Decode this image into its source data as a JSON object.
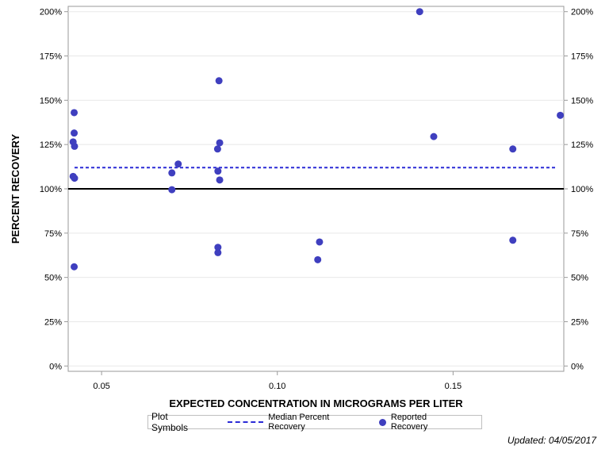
{
  "chart_data": {
    "type": "scatter",
    "xlabel": "EXPECTED CONCENTRATION IN MICROGRAMS PER LITER",
    "ylabel": "PERCENT RECOVERY",
    "xlim": [
      0.0405,
      0.1815
    ],
    "ylim": [
      -3,
      203
    ],
    "x_ticks": [
      0.05,
      0.1,
      0.15
    ],
    "x_tick_labels": [
      "0.05",
      "0.10",
      "0.15"
    ],
    "y_ticks": [
      0,
      25,
      50,
      75,
      100,
      125,
      150,
      175,
      200
    ],
    "y_tick_labels": [
      "0%",
      "25%",
      "50%",
      "75%",
      "100%",
      "125%",
      "150%",
      "175%",
      "200%"
    ],
    "reference_line": 100,
    "median_percent_recovery": 112,
    "series": [
      {
        "name": "Reported Recovery",
        "points": [
          [
            0.0422,
            143
          ],
          [
            0.0422,
            131.5
          ],
          [
            0.0419,
            126.5
          ],
          [
            0.0423,
            124
          ],
          [
            0.0419,
            107
          ],
          [
            0.0423,
            106
          ],
          [
            0.0422,
            56
          ],
          [
            0.07,
            109
          ],
          [
            0.0718,
            114
          ],
          [
            0.07,
            99.5
          ],
          [
            0.0834,
            161
          ],
          [
            0.0836,
            126
          ],
          [
            0.083,
            122.5
          ],
          [
            0.0831,
            110
          ],
          [
            0.0836,
            105
          ],
          [
            0.0831,
            67
          ],
          [
            0.0831,
            64
          ],
          [
            0.112,
            70
          ],
          [
            0.1115,
            60
          ],
          [
            0.1405,
            200
          ],
          [
            0.1445,
            129.5
          ],
          [
            0.167,
            122.5
          ],
          [
            0.167,
            71
          ],
          [
            0.1805,
            141.5
          ]
        ]
      }
    ],
    "legend": {
      "title": "Plot Symbols",
      "entries": [
        "Median Percent Recovery",
        "Reported Recovery"
      ],
      "placement": "bottom"
    }
  },
  "colors": {
    "points": "#3f3fbf",
    "median_line": "#2b2bd6",
    "reference_line": "#000000",
    "grid": "#e8e8e8"
  },
  "footnote": "Updated: 04/05/2017"
}
